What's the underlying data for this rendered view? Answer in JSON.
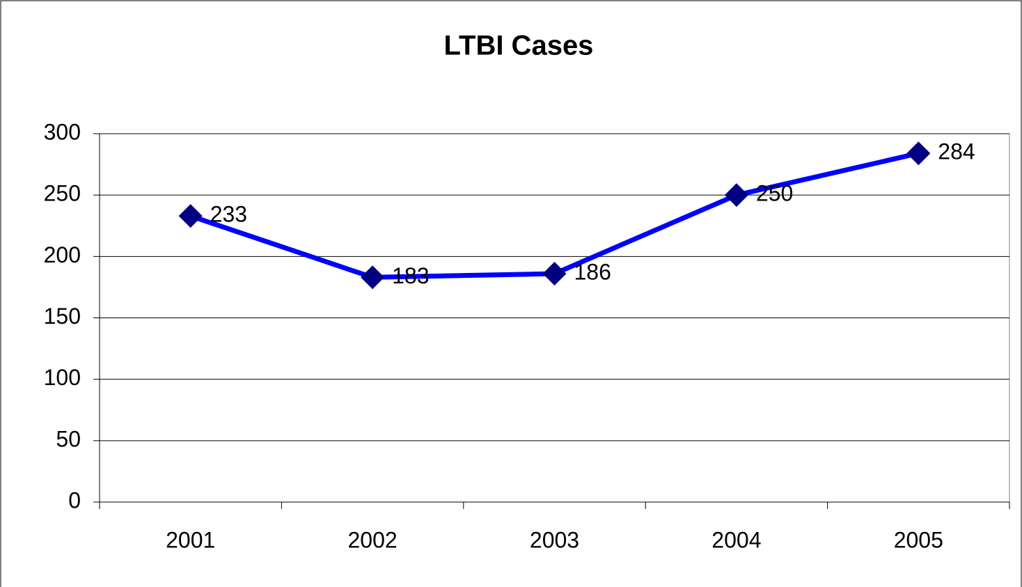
{
  "chart_data": {
    "type": "line",
    "title": "LTBI Cases",
    "categories": [
      "2001",
      "2002",
      "2003",
      "2004",
      "2005"
    ],
    "series": [
      {
        "name": "LTBI Cases",
        "color": "#0000ff",
        "marker_color": "#000080",
        "values": [
          233,
          183,
          186,
          250,
          284
        ]
      }
    ],
    "ylim": [
      0,
      300
    ],
    "yticks": [
      0,
      50,
      100,
      150,
      200,
      250,
      300
    ],
    "grid": true
  }
}
